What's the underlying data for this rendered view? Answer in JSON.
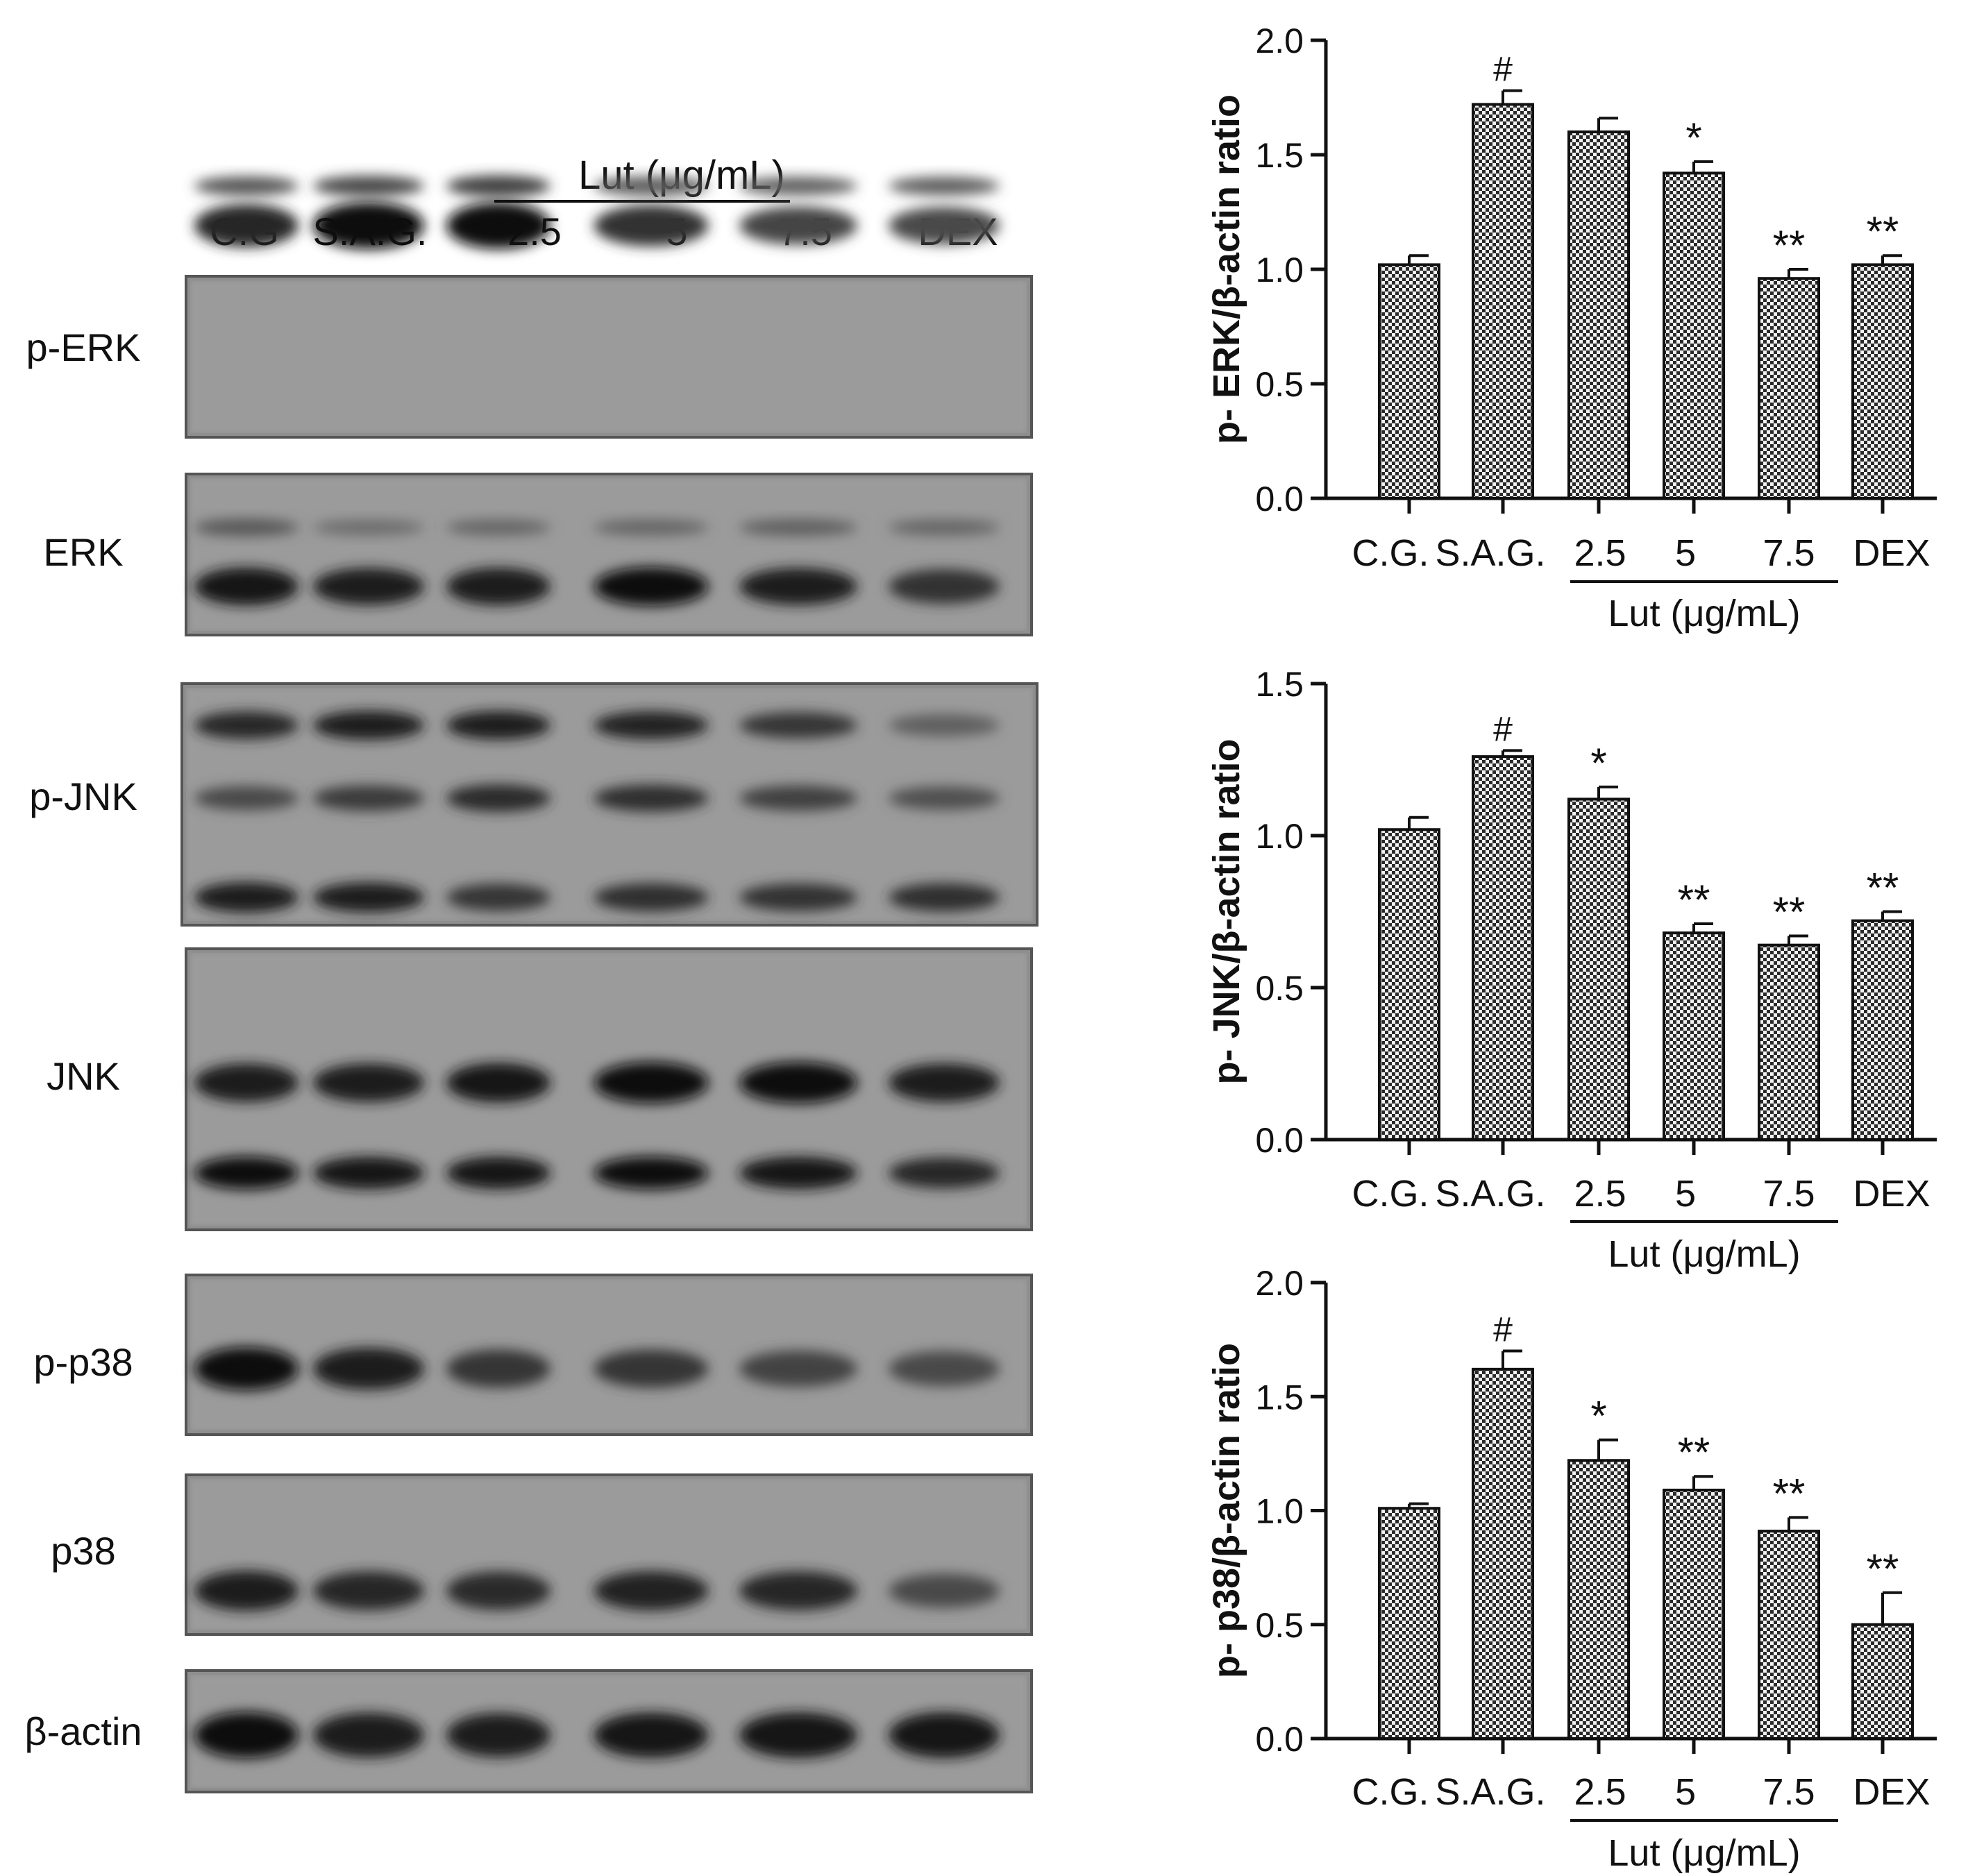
{
  "blot": {
    "group_label": "Lut (μg/mL)",
    "lanes": [
      "C.G",
      "S.A.G.",
      "2.5",
      "5",
      "7.5",
      "DEX"
    ],
    "rows": [
      {
        "label": "p-ERK",
        "bands": [
          [
            0.45,
            0.55,
            0.62,
            0.42,
            0.38,
            0.4
          ],
          [
            0.8,
            1.0,
            0.98,
            0.72,
            0.58,
            0.55
          ]
        ]
      },
      {
        "label": "ERK",
        "bands": [
          [
            0.45,
            0.3,
            0.35,
            0.35,
            0.4,
            0.35
          ],
          [
            0.9,
            0.85,
            0.88,
            0.95,
            0.85,
            0.72
          ]
        ]
      },
      {
        "label": "p-JNK",
        "bands": [
          [
            0.8,
            0.88,
            0.85,
            0.82,
            0.7,
            0.4
          ],
          [
            0.55,
            0.65,
            0.78,
            0.75,
            0.62,
            0.5
          ],
          [
            0.88,
            0.85,
            0.7,
            0.75,
            0.72,
            0.75
          ]
        ]
      },
      {
        "label": "JNK",
        "bands": [
          [
            0.85,
            0.85,
            0.9,
            1.0,
            1.0,
            0.85
          ],
          [
            0.95,
            0.92,
            0.92,
            0.95,
            0.92,
            0.8
          ]
        ]
      },
      {
        "label": "p-p38",
        "bands": [
          [
            0.95,
            0.88,
            0.7,
            0.7,
            0.6,
            0.55
          ]
        ]
      },
      {
        "label": "p38",
        "bands": [
          [
            0.85,
            0.8,
            0.78,
            0.82,
            0.8,
            0.55
          ]
        ]
      },
      {
        "label": "β-actin",
        "bands": [
          [
            0.95,
            0.88,
            0.85,
            0.9,
            0.92,
            0.92
          ]
        ]
      }
    ]
  },
  "chart_data": [
    {
      "type": "bar",
      "ylabel": "p- ERK/β-actin ratio",
      "categories": [
        "C.G.",
        "S.A.G.",
        "2.5",
        "5",
        "7.5",
        "DEX"
      ],
      "group_label": "Lut (μg/mL)",
      "values": [
        1.02,
        1.72,
        1.6,
        1.42,
        0.96,
        1.02
      ],
      "errors": [
        0.04,
        0.06,
        0.06,
        0.05,
        0.04,
        0.04
      ],
      "significance": [
        "",
        "#",
        "",
        "*",
        "**",
        "**"
      ],
      "ylim": [
        0,
        2.0
      ],
      "yticks": [
        "0.0",
        "0.5",
        "1.0",
        "1.5",
        "2.0"
      ],
      "ytick_values": [
        0,
        0.5,
        1.0,
        1.5,
        2.0
      ]
    },
    {
      "type": "bar",
      "ylabel": "p- JNK/β-actin ratio",
      "categories": [
        "C.G.",
        "S.A.G.",
        "2.5",
        "5",
        "7.5",
        "DEX"
      ],
      "group_label": "Lut (μg/mL)",
      "values": [
        1.02,
        1.26,
        1.12,
        0.68,
        0.64,
        0.72
      ],
      "errors": [
        0.04,
        0.02,
        0.04,
        0.03,
        0.03,
        0.03
      ],
      "significance": [
        "",
        "#",
        "*",
        "**",
        "**",
        "**"
      ],
      "ylim": [
        0,
        1.5
      ],
      "yticks": [
        "0.0",
        "0.5",
        "1.0",
        "1.5"
      ],
      "ytick_values": [
        0,
        0.5,
        1.0,
        1.5
      ]
    },
    {
      "type": "bar",
      "ylabel": "p- p38/β-actin ratio",
      "categories": [
        "C.G.",
        "S.A.G.",
        "2.5",
        "5",
        "7.5",
        "DEX"
      ],
      "group_label": "Lut (μg/mL)",
      "values": [
        1.01,
        1.62,
        1.22,
        1.09,
        0.91,
        0.5
      ],
      "errors": [
        0.02,
        0.08,
        0.09,
        0.06,
        0.06,
        0.14
      ],
      "significance": [
        "",
        "#",
        "*",
        "**",
        "**",
        "**"
      ],
      "ylim": [
        0,
        2.0
      ],
      "yticks": [
        "0.0",
        "0.5",
        "1.0",
        "1.5",
        "2.0"
      ],
      "ytick_values": [
        0,
        0.5,
        1.0,
        1.5,
        2.0
      ]
    }
  ]
}
